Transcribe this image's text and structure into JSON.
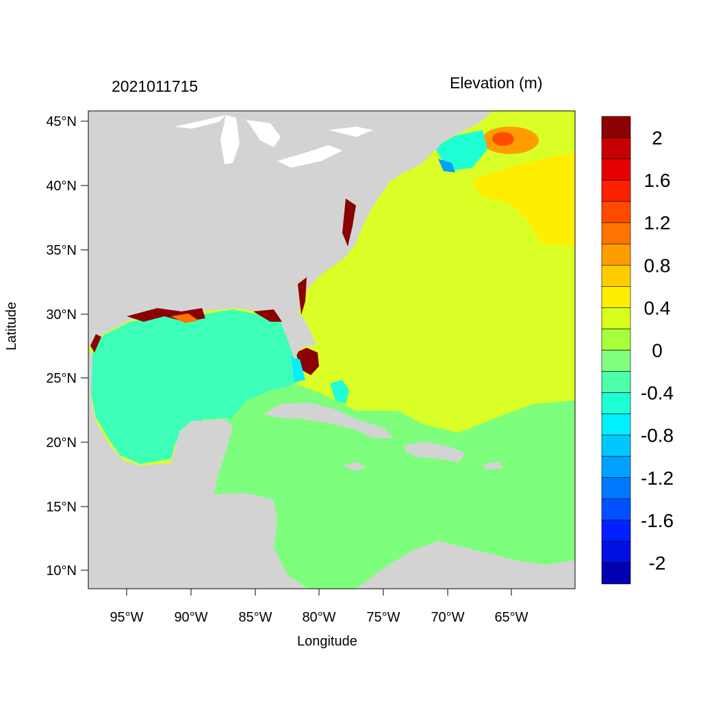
{
  "title_left": "2021011715",
  "title_right": "Elevation (m)",
  "xlabel": "Longitude",
  "ylabel": "Latitude",
  "x_ticks": [
    "95°W",
    "90°W",
    "85°W",
    "80°W",
    "75°W",
    "70°W",
    "65°W"
  ],
  "y_ticks": [
    "45°N",
    "40°N",
    "35°N",
    "30°N",
    "25°N",
    "20°N",
    "15°N",
    "10°N"
  ],
  "colorbar": {
    "labels": [
      "2",
      "1.6",
      "1.2",
      "0.8",
      "0.4",
      "0",
      "-0.4",
      "-0.8",
      "-1.2",
      "-1.6",
      "-2"
    ],
    "colors_top_to_bottom": [
      "#8b0000",
      "#c40000",
      "#e60000",
      "#ff2000",
      "#ff4a00",
      "#ff7400",
      "#ff9d00",
      "#ffcc00",
      "#ffee00",
      "#d7ff1e",
      "#a6ff3b",
      "#80ff80",
      "#4dffaa",
      "#1effd6",
      "#00f0ff",
      "#00c8ff",
      "#00a0ff",
      "#0078ff",
      "#0050ff",
      "#0020ff",
      "#0010e0",
      "#0000b0"
    ]
  },
  "colors": {
    "land": "#d3d3d3",
    "gulf": "#3dffb8",
    "caribbean": "#7dff7d",
    "atlantic": "#d9ff26",
    "northeast": "#ffee00"
  }
}
